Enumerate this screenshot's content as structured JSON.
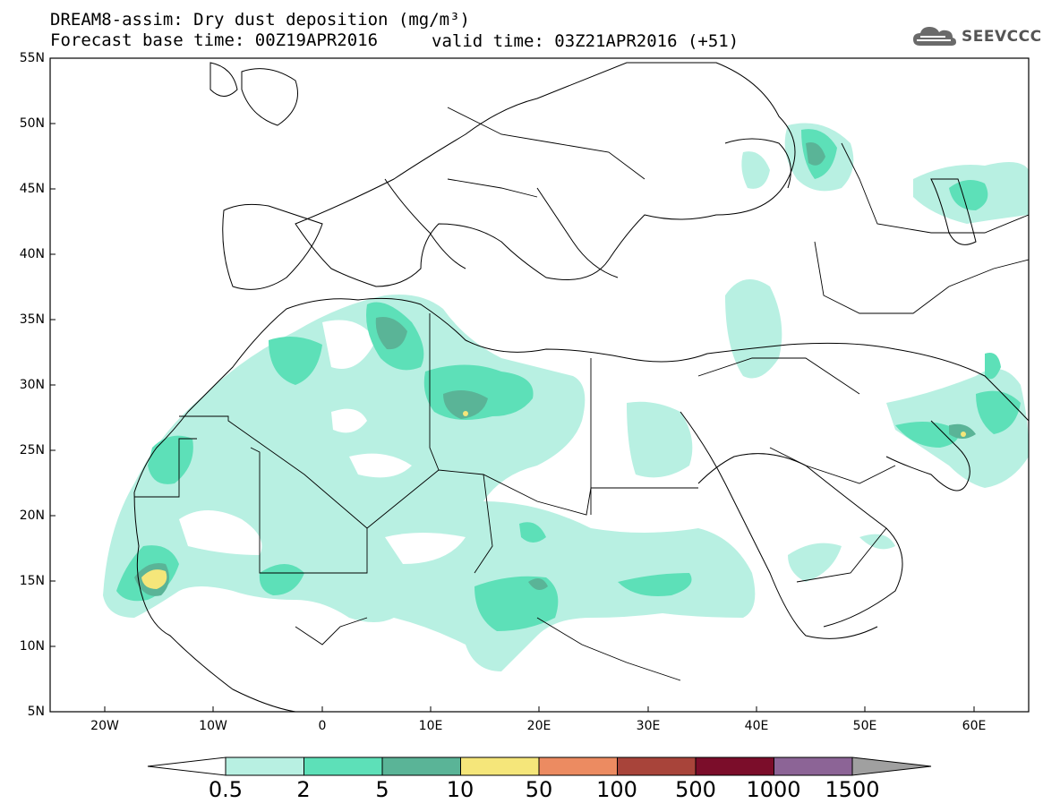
{
  "title": {
    "line1": "DREAM8-assim: Dry dust deposition (mg/m³)",
    "line2": "Forecast base time: 00Z19APR2016",
    "valid": "valid time: 03Z21APR2016 (+51)"
  },
  "logo": {
    "text": "SEEVCCC",
    "icon": "cloud-icon"
  },
  "axes": {
    "lat_labels": [
      "55N",
      "50N",
      "45N",
      "40N",
      "35N",
      "30N",
      "25N",
      "20N",
      "15N",
      "10N",
      "5N"
    ],
    "lon_labels": [
      "20W",
      "10W",
      "0",
      "10E",
      "20E",
      "30E",
      "40E",
      "50E",
      "60E"
    ],
    "lon_range": [
      -25,
      65
    ],
    "lat_range": [
      5,
      55
    ]
  },
  "colorbar": {
    "labels": [
      "0.5",
      "2",
      "5",
      "10",
      "50",
      "100",
      "500",
      "1000",
      "1500"
    ],
    "colors": [
      "#ffffff",
      "#b8f0e2",
      "#5de0b8",
      "#5ab497",
      "#f5e67a",
      "#ec8b61",
      "#a8443a",
      "#7b0d2a",
      "#8c6496",
      "#a0a0a0"
    ]
  },
  "legend_colors": {
    "light": "#b8f0e2",
    "medium": "#5de0b8",
    "dark": "#5ab497",
    "yellow": "#f5e67a"
  }
}
